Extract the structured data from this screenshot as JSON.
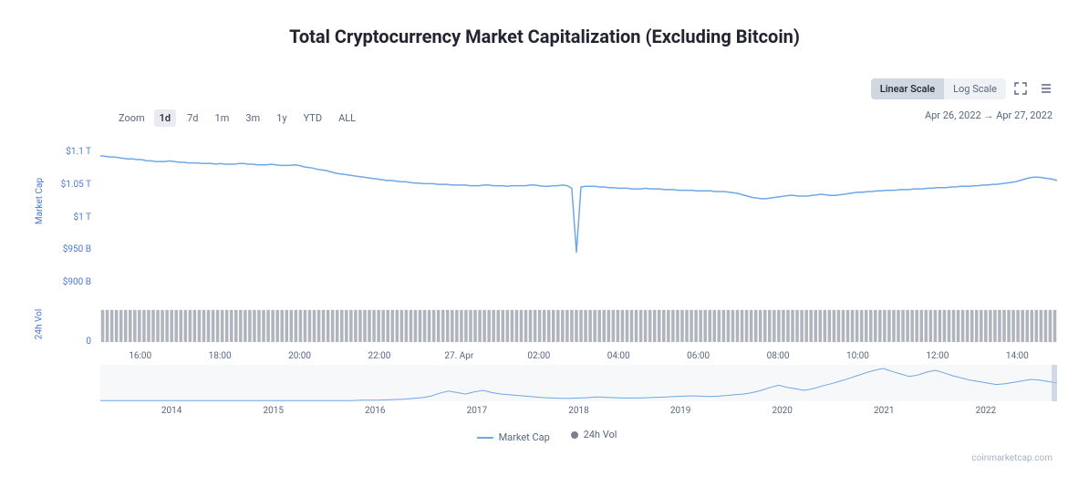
{
  "title": "Total Cryptocurrency Market Capitalization (Excluding Bitcoin)",
  "controls": {
    "scale_linear": "Linear Scale",
    "scale_log": "Log Scale",
    "scale_active": "linear"
  },
  "zoom": {
    "label": "Zoom",
    "options": [
      "1d",
      "7d",
      "1m",
      "3m",
      "1y",
      "YTD",
      "ALL"
    ],
    "active": "1d"
  },
  "date_range": {
    "from": "Apr 26, 2022",
    "arrow": "→",
    "to": "Apr 27, 2022"
  },
  "axis_labels": {
    "market_cap": "Market Cap",
    "volume": "24h Vol"
  },
  "market_cap_chart": {
    "type": "line",
    "line_color": "#6ea8e8",
    "line_width": 1.5,
    "background": "#ffffff",
    "y_ticks": [
      {
        "label": "$1.1 T",
        "value": 1100
      },
      {
        "label": "$1.05 T",
        "value": 1050
      },
      {
        "label": "$1 T",
        "value": 1000
      },
      {
        "label": "$950 B",
        "value": 950
      },
      {
        "label": "$900 B",
        "value": 900
      }
    ],
    "ylim": [
      900,
      1110
    ],
    "x_range_hours": 24,
    "x_ticks": [
      "16:00",
      "18:00",
      "20:00",
      "22:00",
      "27. Apr",
      "02:00",
      "04:00",
      "06:00",
      "08:00",
      "10:00",
      "12:00",
      "14:00"
    ],
    "data": [
      1095,
      1094,
      1093,
      1093,
      1092,
      1091,
      1090,
      1090,
      1089,
      1089,
      1087,
      1087,
      1086,
      1086,
      1086,
      1087,
      1086,
      1085,
      1085,
      1084,
      1084,
      1084,
      1083,
      1083,
      1083,
      1082,
      1083,
      1082,
      1082,
      1082,
      1083,
      1083,
      1082,
      1082,
      1081,
      1081,
      1081,
      1082,
      1081,
      1080,
      1080,
      1080,
      1081,
      1080,
      1078,
      1077,
      1076,
      1074,
      1073,
      1072,
      1070,
      1068,
      1067,
      1066,
      1065,
      1064,
      1063,
      1062,
      1061,
      1060,
      1059,
      1058,
      1057,
      1057,
      1056,
      1055,
      1055,
      1054,
      1053,
      1053,
      1052,
      1052,
      1052,
      1051,
      1051,
      1051,
      1050,
      1050,
      1050,
      1050,
      1049,
      1049,
      1049,
      1050,
      1050,
      1049,
      1049,
      1049,
      1048,
      1049,
      1049,
      1049,
      1049,
      1050,
      1050,
      1049,
      1048,
      1048,
      1049,
      1049,
      1050,
      1049,
      1045,
      946,
      1047,
      1048,
      1048,
      1048,
      1047,
      1047,
      1046,
      1046,
      1045,
      1045,
      1045,
      1044,
      1044,
      1044,
      1045,
      1044,
      1044,
      1044,
      1043,
      1043,
      1043,
      1042,
      1042,
      1042,
      1042,
      1041,
      1041,
      1041,
      1041,
      1040,
      1040,
      1040,
      1039,
      1038,
      1037,
      1035,
      1033,
      1031,
      1030,
      1029,
      1029,
      1030,
      1031,
      1032,
      1033,
      1034,
      1034,
      1033,
      1033,
      1033,
      1034,
      1035,
      1036,
      1035,
      1034,
      1034,
      1035,
      1036,
      1037,
      1038,
      1039,
      1039,
      1040,
      1040,
      1041,
      1041,
      1042,
      1042,
      1042,
      1043,
      1043,
      1043,
      1044,
      1044,
      1044,
      1045,
      1045,
      1046,
      1046,
      1046,
      1047,
      1047,
      1048,
      1048,
      1048,
      1049,
      1049,
      1050,
      1050,
      1051,
      1051,
      1052,
      1053,
      1054,
      1055,
      1057,
      1059,
      1061,
      1062,
      1062,
      1061,
      1060,
      1059,
      1057
    ]
  },
  "volume_chart": {
    "type": "bar",
    "bar_color": "#6e7687",
    "bar_opacity": 0.55,
    "y_ticks": [
      {
        "label": "",
        "value": 100
      },
      {
        "label": "0",
        "value": 0
      }
    ],
    "ylim": [
      0,
      100
    ],
    "bar_count": 208,
    "bar_value": 88
  },
  "navigator_chart": {
    "type": "line",
    "line_color": "#6ea8e8",
    "line_width": 1,
    "ylim": [
      0,
      100
    ],
    "x_ticks": [
      "2014",
      "2015",
      "2016",
      "2017",
      "2018",
      "2019",
      "2020",
      "2021",
      "2022"
    ],
    "data": [
      2,
      2,
      2,
      2,
      2,
      2,
      2,
      2,
      2,
      2,
      2,
      2,
      2,
      2,
      2,
      2,
      2,
      2,
      2,
      2,
      2,
      2,
      2,
      2,
      2,
      2,
      2,
      2,
      2,
      2,
      3,
      3,
      3,
      4,
      5,
      6,
      8,
      10,
      14,
      22,
      28,
      24,
      20,
      26,
      30,
      24,
      20,
      18,
      16,
      14,
      12,
      10,
      9,
      8,
      8,
      9,
      10,
      12,
      11,
      10,
      9,
      9,
      9,
      10,
      11,
      12,
      13,
      14,
      15,
      14,
      13,
      14,
      16,
      18,
      20,
      24,
      30,
      38,
      44,
      38,
      34,
      30,
      35,
      42,
      48,
      55,
      62,
      70,
      78,
      85,
      90,
      82,
      75,
      68,
      72,
      80,
      85,
      78,
      70,
      64,
      58,
      54,
      50,
      46,
      48,
      52,
      56,
      60,
      58,
      54,
      50
    ]
  },
  "legend": {
    "market_cap": "Market Cap",
    "volume": "24h Vol"
  },
  "attribution": "coinmarketcap.com"
}
